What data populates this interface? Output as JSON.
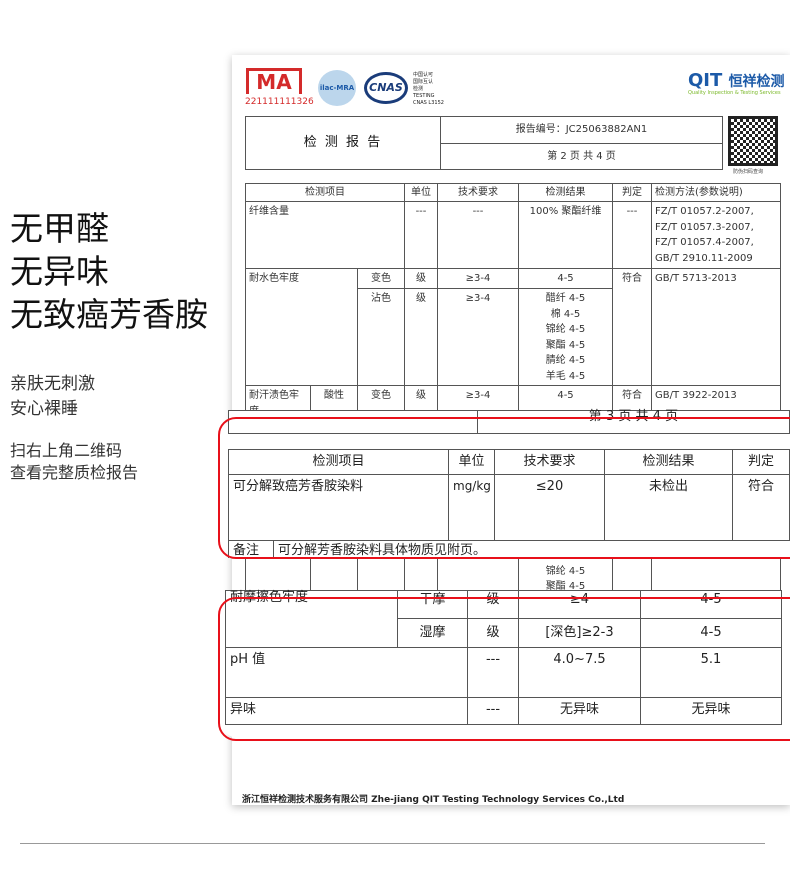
{
  "claims": [
    "无甲醛",
    "无异味",
    "无致癌芳香胺"
  ],
  "subtext": [
    "亲肤无刺激",
    "安心裸睡"
  ],
  "scan_hint": [
    "扫右上角二维码",
    "查看完整质检报告"
  ],
  "report": {
    "logos": {
      "cma": "MA",
      "cma_number": "221111111326",
      "ilac": "ilac-MRA",
      "cnas": "CNAS",
      "cnas_text": [
        "中国认可",
        "国际互认",
        "检测",
        "TESTING",
        "CNAS L3152"
      ],
      "qit": "QIT",
      "qit_cn": "恒祥检测",
      "qit_en": "Quality Inspection & Testing Services"
    },
    "title": "检 测 报 告",
    "report_no": "报告编号：JC25063882AN1",
    "page": "第 2 页 共 4 页",
    "qr_caption": "防伪扫码查询",
    "headers": [
      "检测项目",
      "单位",
      "技术要求",
      "检测结果",
      "判定",
      "检测方法(参数说明)"
    ],
    "fiber": {
      "item": "纤维含量",
      "unit": "---",
      "req": "---",
      "result": "100% 聚酯纤维",
      "verdict": "---",
      "method": "FZ/T 01057.2-2007, FZ/T 01057.3-2007, FZ/T 01057.4-2007, GB/T 2910.11-2009"
    },
    "water": {
      "item": "耐水色牢度",
      "change": "变色",
      "unit": "级",
      "req": "≥3-4",
      "result": "4-5",
      "stain": "沾色",
      "stain_unit": "级",
      "stain_req": "≥3-4",
      "stain_results": [
        "醋纤 4-5",
        "棉 4-5",
        "锦纶 4-5",
        "聚酯 4-5",
        "腈纶 4-5",
        "羊毛 4-5"
      ],
      "verdict": "符合",
      "method": "GB/T 5713-2013"
    },
    "sweat": {
      "item": "耐汗渍色牢度",
      "type": "酸性",
      "change": "变色",
      "unit": "级",
      "req": "≥3-4",
      "result": "4-5",
      "verdict": "符合",
      "method": "GB/T 3922-2013",
      "more": [
        "锦纶 4-5",
        "聚酯 4-5"
      ]
    },
    "footer": "浙江恒祥检测技术服务有限公司 Zhe-jiang QIT Testing Technology Services Co.,Ltd"
  },
  "zoom1": {
    "page": "第 3 页 共 4 页",
    "headers": [
      "检测项目",
      "单位",
      "技术要求",
      "检测结果",
      "判定"
    ],
    "item": "可分解致癌芳香胺染料",
    "unit": "mg/kg",
    "req": "≤20",
    "result": "未检出",
    "verdict": "符合",
    "note_label": "备注",
    "note": "可分解芳香胺染料具体物质见附页。"
  },
  "zoom2": {
    "rub_item": "耐摩擦色牢度",
    "dry": "干摩",
    "dry_unit": "级",
    "dry_req": "≥4",
    "dry_result": "4-5",
    "wet": "湿摩",
    "wet_unit": "级",
    "wet_req": "[深色]≥2-3",
    "wet_result": "4-5",
    "ph_item": "pH 值",
    "ph_unit": "---",
    "ph_req": "4.0~7.5",
    "ph_result": "5.1",
    "odor_item": "异味",
    "odor_unit": "---",
    "odor_req": "无异味",
    "odor_result": "无异味"
  },
  "colors": {
    "highlight": "#e8101a",
    "cma_red": "#d42a2a",
    "qit_blue": "#1c5aa8",
    "qit_green": "#7ab828"
  }
}
